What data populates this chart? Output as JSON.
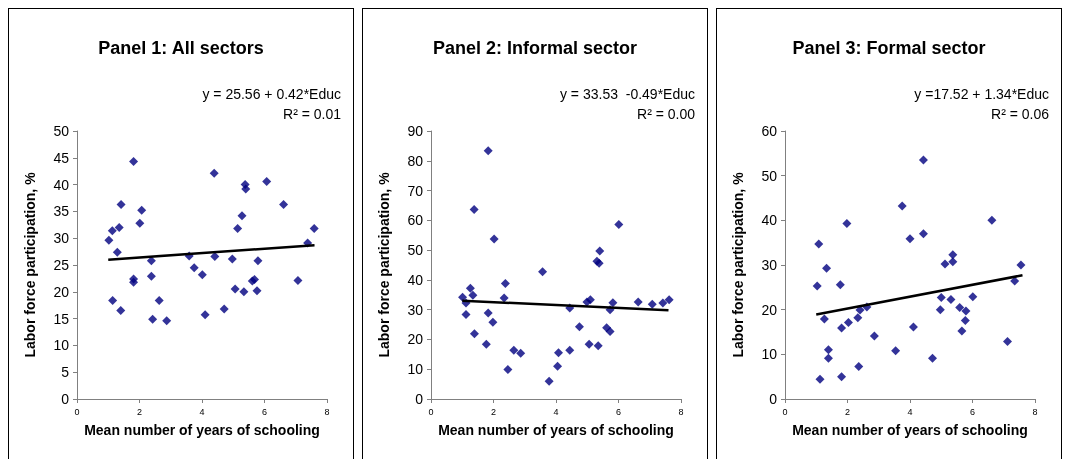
{
  "chart_data": [
    {
      "type": "scatter",
      "title": "Panel 1: All sectors",
      "xlabel": "Mean number of years of schooling",
      "ylabel": "Labor force participation, %",
      "annotations": [
        "y = 25.56 + 0.42*Educ",
        "R² = 0.01"
      ],
      "xlim": [
        0,
        8
      ],
      "xticks": [
        0,
        2,
        4,
        6,
        8
      ],
      "ylim": [
        0,
        50
      ],
      "yticks": [
        0,
        5,
        10,
        15,
        20,
        25,
        30,
        35,
        40,
        45,
        50
      ],
      "series": [
        {
          "marker": "diamond",
          "color": "#000080",
          "x": [
            1.81,
            4.39,
            5.38,
            5.4,
            6.07,
            1.41,
            2.07,
            6.61,
            2.01,
            5.28,
            5.14,
            1.13,
            1.35,
            7.59,
            1.02,
            7.38,
            1.29,
            3.59,
            4.41,
            2.38,
            4.97,
            5.79,
            3.75,
            4.01,
            2.38,
            1.81,
            1.81,
            7.07,
            5.68,
            5.61,
            5.06,
            5.34,
            5.76,
            1.14,
            2.63,
            1.4,
            4.71,
            4.1,
            2.42,
            2.87
          ],
          "values": [
            44.3,
            42.1,
            40.0,
            39.2,
            40.6,
            36.3,
            35.2,
            36.3,
            32.8,
            34.2,
            31.8,
            31.4,
            32.0,
            31.8,
            29.6,
            29.1,
            27.4,
            26.7,
            26.6,
            25.8,
            26.1,
            25.8,
            24.5,
            23.2,
            22.9,
            22.4,
            21.8,
            22.1,
            22.3,
            22.0,
            20.5,
            20.0,
            20.2,
            18.4,
            18.4,
            16.5,
            16.8,
            15.7,
            14.9,
            14.6
          ]
        },
        {
          "type": "line",
          "marker": "none",
          "color": "#000000",
          "x": [
            1.0,
            7.6
          ],
          "values": [
            26.0,
            28.7
          ]
        }
      ]
    },
    {
      "type": "scatter",
      "title": "Panel 2: Informal sector",
      "xlabel": "Mean number of years of schooling",
      "ylabel": "Labor force participation, %",
      "annotations": [
        "y = 33.53  -0.49*Educ",
        "R² = 0.00"
      ],
      "xlim": [
        0,
        8
      ],
      "xticks": [
        0,
        2,
        4,
        6,
        8
      ],
      "ylim": [
        0,
        90
      ],
      "yticks": [
        0,
        10,
        20,
        30,
        40,
        50,
        60,
        70,
        80,
        90
      ],
      "series": [
        {
          "marker": "diamond",
          "color": "#000080",
          "x": [
            1.83,
            1.38,
            2.02,
            6.01,
            5.4,
            5.31,
            5.38,
            3.57,
            1.26,
            2.38,
            1.01,
            1.34,
            1.12,
            1.12,
            2.34,
            1.83,
            1.98,
            1.39,
            1.77,
            2.65,
            2.87,
            2.46,
            3.78,
            4.05,
            4.08,
            4.44,
            4.44,
            4.75,
            4.99,
            5.1,
            5.06,
            5.35,
            5.62,
            5.73,
            5.73,
            5.82,
            6.63,
            7.08,
            7.42,
            7.62
          ],
          "values": [
            83.4,
            63.6,
            53.7,
            58.6,
            49.7,
            46.3,
            45.6,
            42.7,
            37.2,
            38.8,
            34.2,
            34.8,
            32.2,
            28.4,
            33.9,
            28.9,
            25.8,
            21.9,
            18.4,
            16.4,
            15.4,
            9.9,
            6.0,
            11.0,
            15.5,
            30.6,
            16.4,
            24.3,
            32.6,
            33.3,
            18.4,
            17.9,
            23.9,
            22.7,
            30.0,
            32.3,
            32.6,
            31.8,
            32.2,
            33.3
          ]
        },
        {
          "type": "line",
          "marker": "none",
          "color": "#000000",
          "x": [
            1.0,
            7.6
          ],
          "values": [
            33.0,
            29.8
          ]
        }
      ]
    },
    {
      "type": "scatter",
      "title": "Panel 3: Formal sector",
      "xlabel": "Mean number of years of schooling",
      "ylabel": "Labor force participation, %",
      "annotations": [
        "y =17.52 + 1.34*Educ",
        "R² = 0.06"
      ],
      "xlim": [
        0,
        8
      ],
      "xticks": [
        0,
        2,
        4,
        6,
        8
      ],
      "ylim": [
        0,
        60
      ],
      "yticks": [
        0,
        10,
        20,
        30,
        40,
        50,
        60
      ],
      "series": [
        {
          "marker": "diamond",
          "color": "#000080",
          "x": [
            4.43,
            3.75,
            1.98,
            6.62,
            4.0,
            4.43,
            1.08,
            1.33,
            1.03,
            1.77,
            5.12,
            5.37,
            5.37,
            7.55,
            7.35,
            5.0,
            5.31,
            6.01,
            4.97,
            5.59,
            5.79,
            5.77,
            5.66,
            1.26,
            1.81,
            2.03,
            2.33,
            2.4,
            2.62,
            2.86,
            4.11,
            3.54,
            4.72,
            7.12,
            1.39,
            1.39,
            1.12,
            1.81,
            2.36
          ],
          "values": [
            53.5,
            43.2,
            39.3,
            40.0,
            35.9,
            37.0,
            34.7,
            29.3,
            25.3,
            25.6,
            30.2,
            30.7,
            32.3,
            30.0,
            26.4,
            22.7,
            22.3,
            22.9,
            20.0,
            20.5,
            19.7,
            17.6,
            15.2,
            17.9,
            15.9,
            17.1,
            18.2,
            19.9,
            20.6,
            14.1,
            16.1,
            10.8,
            9.1,
            12.9,
            11.0,
            9.1,
            4.4,
            5.0,
            7.3
          ]
        },
        {
          "type": "line",
          "marker": "none",
          "color": "#000000",
          "x": [
            1.0,
            7.6
          ],
          "values": [
            18.9,
            27.7
          ]
        }
      ]
    }
  ]
}
